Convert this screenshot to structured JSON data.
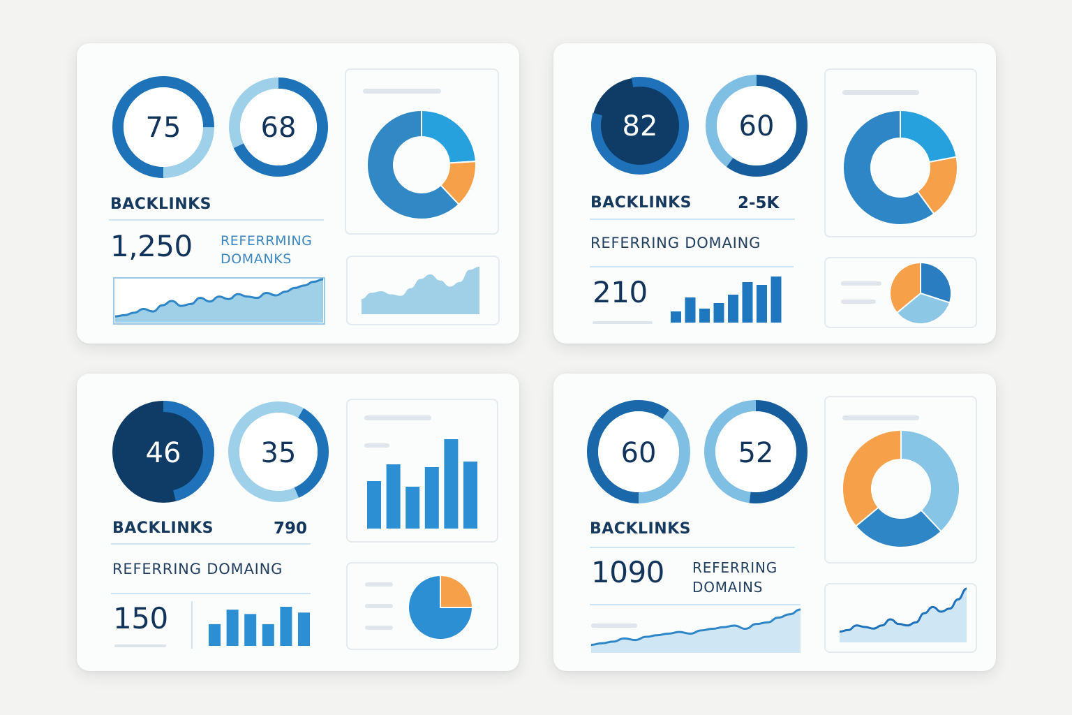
{
  "cards": [
    {
      "gauges": [
        {
          "value": 75,
          "label": "75"
        },
        {
          "value": 68,
          "label": "68"
        }
      ],
      "backlinks_label": "BACKLINKS",
      "backlinks_value": "1,250",
      "referring_line1": "REFERRMING",
      "referring_line2": "DOMANKS",
      "colors": {
        "dark": "#17609f",
        "primary": "#2f86c6",
        "light": "#9fd0ea",
        "orange": "#f6a04a",
        "area": "#9fd0e8"
      }
    },
    {
      "gauges": [
        {
          "value": 82,
          "label": "82"
        },
        {
          "value": 60,
          "label": "60"
        }
      ],
      "backlinks_label": "BACKLINKS",
      "backlinks_value": "2-5K",
      "referring_label": "REFERRING DOMAING",
      "referring_value": "210"
    },
    {
      "gauges": [
        {
          "value": 46,
          "label": "46"
        },
        {
          "value": 35,
          "label": "35"
        }
      ],
      "backlinks_label": "BACKLINKS",
      "backlinks_value": "790",
      "referring_label": "REFERRING DOMAING",
      "referring_value": "150"
    },
    {
      "gauges": [
        {
          "value": 60,
          "label": "60"
        },
        {
          "value": 52,
          "label": "52"
        }
      ],
      "backlinks_label": "BACKLINKS",
      "backlinks_value": "1090",
      "referring_line1": "REFERRING",
      "referring_line2": "DOMAINS"
    }
  ],
  "chart_data": [
    {
      "type": "line",
      "card": 1,
      "values": [
        10,
        12,
        16,
        22,
        18,
        28,
        35,
        27,
        30,
        40,
        34,
        42,
        38,
        46,
        42,
        40,
        48,
        44,
        50,
        56,
        60,
        66,
        70
      ]
    },
    {
      "type": "pie",
      "card": 1,
      "donut": true,
      "values": [
        24,
        14,
        62
      ]
    },
    {
      "type": "area",
      "card": 1,
      "values": [
        20,
        28,
        30,
        26,
        24,
        34,
        46,
        52,
        44,
        36,
        42,
        58,
        62
      ]
    },
    {
      "type": "pie",
      "card": 2,
      "donut": true,
      "values": [
        22,
        18,
        60
      ]
    },
    {
      "type": "bar",
      "card": 2,
      "values": [
        16,
        36,
        20,
        28,
        40,
        58,
        54,
        66
      ]
    },
    {
      "type": "pie",
      "card": 2,
      "values": [
        30,
        34,
        36
      ]
    },
    {
      "type": "bar",
      "card": 3,
      "values": [
        68,
        92,
        60,
        88,
        128,
        96
      ]
    },
    {
      "type": "bar",
      "card": 3,
      "values": [
        30,
        50,
        44,
        30,
        54,
        46
      ]
    },
    {
      "type": "pie",
      "card": 3,
      "values": [
        25,
        75
      ]
    },
    {
      "type": "pie",
      "card": 4,
      "donut": true,
      "values": [
        38,
        26,
        36
      ]
    },
    {
      "type": "line",
      "card": 4,
      "values": [
        10,
        12,
        14,
        18,
        16,
        20,
        22,
        24,
        26,
        24,
        28,
        30,
        32,
        34,
        30,
        36,
        38,
        44,
        48,
        54
      ]
    },
    {
      "type": "line",
      "card": 4,
      "values": [
        14,
        16,
        22,
        20,
        18,
        22,
        30,
        24,
        22,
        26,
        38,
        46,
        40,
        44,
        56,
        70
      ]
    }
  ]
}
